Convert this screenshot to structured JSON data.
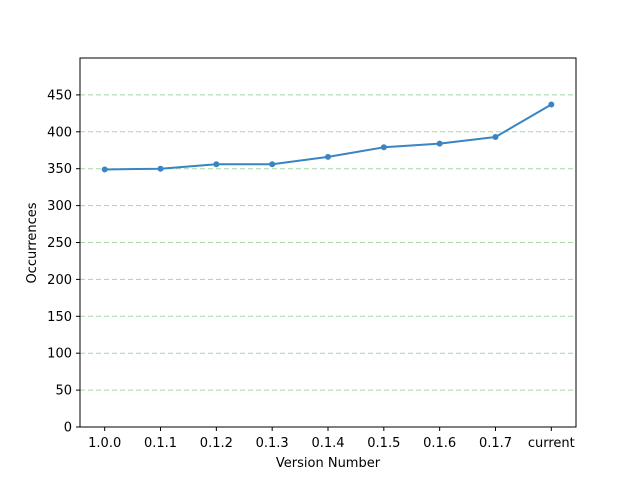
{
  "chart_data": {
    "type": "line",
    "title": "",
    "xlabel": "Version Number",
    "ylabel": "Occurrences",
    "categories": [
      "1.0.0",
      "0.1.1",
      "0.1.2",
      "0.1.3",
      "0.1.4",
      "0.1.5",
      "0.1.6",
      "0.1.7",
      "current"
    ],
    "series": [
      {
        "values": [
          349,
          350,
          356,
          356,
          366,
          379,
          384,
          393,
          437
        ],
        "color": "#3b84c3",
        "marker": "circle"
      }
    ],
    "ylim": [
      0,
      500
    ],
    "yticks": [
      0,
      50,
      100,
      150,
      200,
      250,
      300,
      350,
      400,
      450
    ],
    "grid": {
      "axis": "y",
      "style": "dashed",
      "color": "#a5d8a5"
    },
    "legend": "none"
  }
}
